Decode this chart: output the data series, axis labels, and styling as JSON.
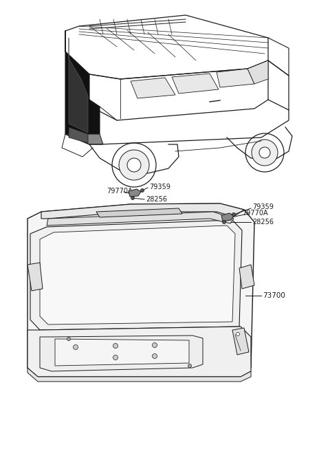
{
  "bg_color": "#ffffff",
  "lc": "#1a1a1a",
  "tc": "#1a1a1a",
  "figsize": [
    4.8,
    6.56
  ],
  "dpi": 100,
  "parts_left": {
    "79359": [
      195,
      273
    ],
    "79770A": [
      170,
      280
    ],
    "28256": [
      208,
      291
    ]
  },
  "parts_right": {
    "79359": [
      345,
      300
    ],
    "79770A": [
      332,
      309
    ],
    "28256": [
      368,
      323
    ]
  },
  "73700": [
    350,
    430
  ]
}
